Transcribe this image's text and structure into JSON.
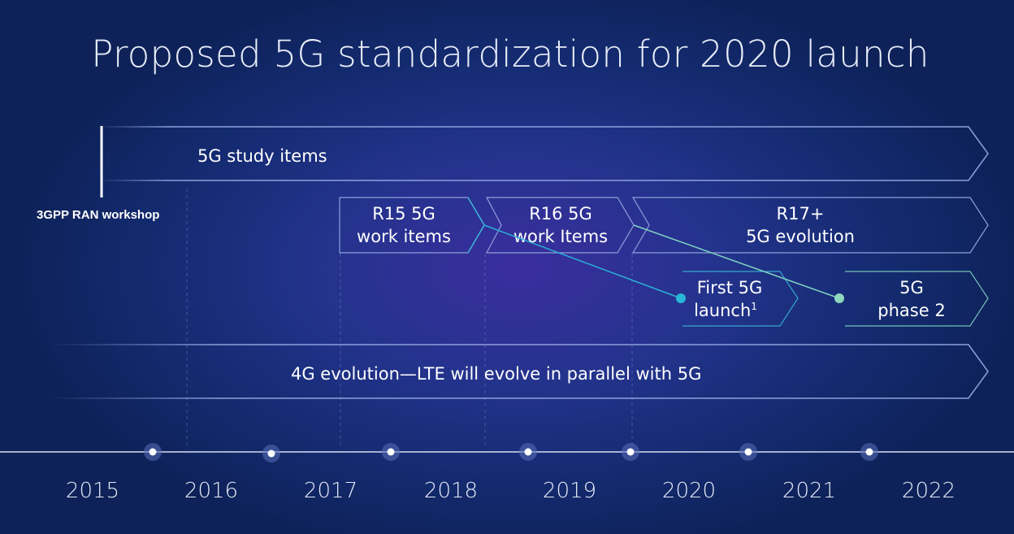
{
  "title": "Proposed 5G standardization for 2020 launch",
  "workshop_label": "3GPP RAN workshop",
  "tracks": {
    "study_items": "5G study items",
    "r15": [
      "R15 5G",
      "work items"
    ],
    "r16": [
      "R16 5G",
      "work Items"
    ],
    "r17": [
      "R17+",
      "5G evolution"
    ],
    "first_launch": [
      "First 5G",
      "launch"
    ],
    "first_launch_footnote": "1",
    "phase2": [
      "5G",
      "phase 2"
    ],
    "lte": "4G evolution—LTE will evolve in parallel with 5G"
  },
  "years": [
    "2015",
    "2016",
    "2017",
    "2018",
    "2019",
    "2020",
    "2021",
    "2022"
  ],
  "colors": {
    "background": "#132a6e",
    "outline": "#8ea0dc",
    "r15_accent": "#3ab4d8",
    "phase2_accent": "#7fd4c0",
    "dot_blue": "#29b6d8",
    "dot_green": "#8fd8bf"
  }
}
